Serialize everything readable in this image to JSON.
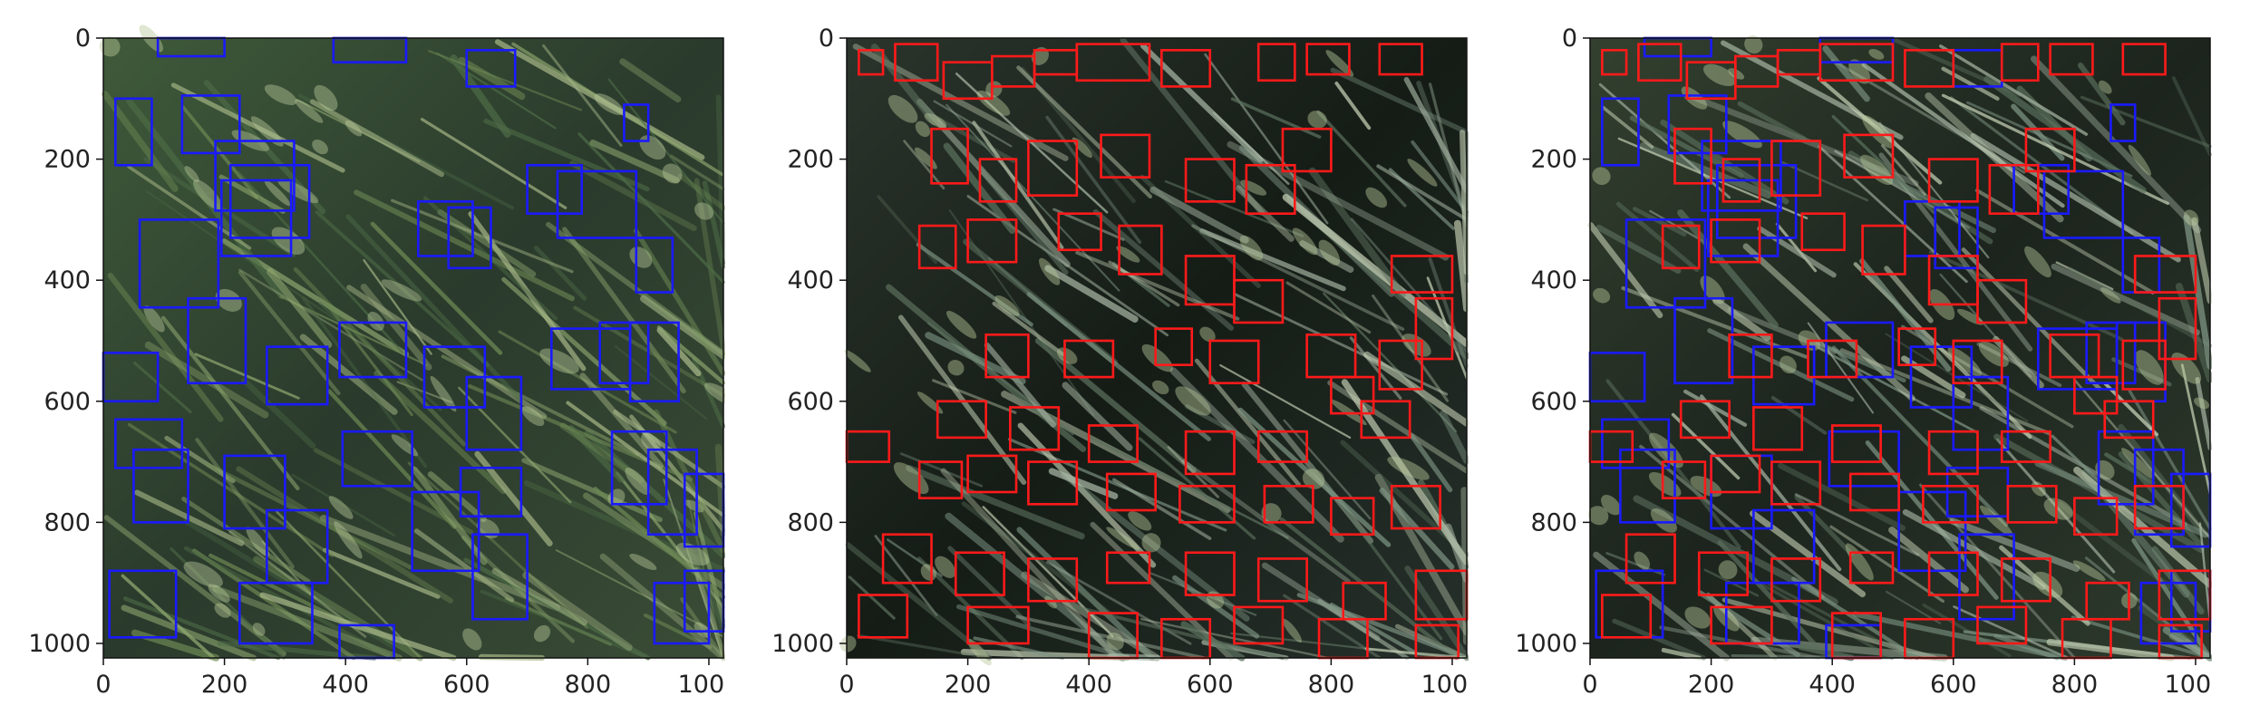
{
  "figure": {
    "panels": [
      {
        "id": "panel-1",
        "box_set": "blue"
      },
      {
        "id": "panel-2",
        "box_set": "red"
      },
      {
        "id": "panel-3",
        "box_set": "both"
      }
    ],
    "xticks": [
      "0",
      "200",
      "400",
      "600",
      "800",
      "1000"
    ],
    "yticks": [
      "0",
      "200",
      "400",
      "600",
      "800",
      "1000"
    ],
    "axis_range": [
      0,
      1024
    ],
    "colors": {
      "blue_boxes": "#1a1aff",
      "red_boxes": "#ff1a1a",
      "axis": "#111111"
    }
  },
  "boxes": {
    "blue": [
      [
        20,
        100,
        80,
        210
      ],
      [
        130,
        95,
        225,
        190
      ],
      [
        185,
        170,
        315,
        285
      ],
      [
        195,
        235,
        310,
        360
      ],
      [
        60,
        300,
        190,
        445
      ],
      [
        140,
        430,
        235,
        570
      ],
      [
        0,
        520,
        90,
        600
      ],
      [
        210,
        210,
        340,
        330
      ],
      [
        270,
        510,
        370,
        605
      ],
      [
        20,
        630,
        130,
        710
      ],
      [
        50,
        680,
        140,
        800
      ],
      [
        200,
        690,
        300,
        810
      ],
      [
        225,
        900,
        345,
        1000
      ],
      [
        10,
        880,
        120,
        990
      ],
      [
        270,
        780,
        370,
        900
      ],
      [
        390,
        470,
        500,
        560
      ],
      [
        395,
        650,
        510,
        740
      ],
      [
        390,
        970,
        480,
        1024
      ],
      [
        520,
        270,
        610,
        360
      ],
      [
        570,
        280,
        640,
        380
      ],
      [
        530,
        510,
        630,
        610
      ],
      [
        600,
        560,
        690,
        680
      ],
      [
        590,
        710,
        690,
        790
      ],
      [
        510,
        750,
        620,
        880
      ],
      [
        610,
        820,
        700,
        960
      ],
      [
        700,
        210,
        790,
        290
      ],
      [
        750,
        220,
        880,
        330
      ],
      [
        740,
        480,
        870,
        580
      ],
      [
        820,
        470,
        900,
        570
      ],
      [
        840,
        650,
        930,
        770
      ],
      [
        880,
        330,
        940,
        420
      ],
      [
        870,
        470,
        950,
        600
      ],
      [
        900,
        680,
        980,
        820
      ],
      [
        910,
        900,
        1000,
        1000
      ],
      [
        960,
        720,
        1024,
        840
      ],
      [
        960,
        880,
        1024,
        980
      ],
      [
        860,
        110,
        900,
        170
      ],
      [
        90,
        0,
        200,
        30
      ],
      [
        380,
        0,
        500,
        40
      ],
      [
        600,
        20,
        680,
        80
      ]
    ],
    "red": [
      [
        20,
        20,
        60,
        60
      ],
      [
        80,
        10,
        150,
        70
      ],
      [
        160,
        40,
        240,
        100
      ],
      [
        240,
        30,
        310,
        80
      ],
      [
        310,
        20,
        380,
        60
      ],
      [
        380,
        10,
        500,
        70
      ],
      [
        520,
        20,
        600,
        80
      ],
      [
        680,
        10,
        740,
        70
      ],
      [
        760,
        10,
        830,
        60
      ],
      [
        880,
        10,
        950,
        60
      ],
      [
        140,
        150,
        200,
        240
      ],
      [
        220,
        200,
        280,
        270
      ],
      [
        300,
        170,
        380,
        260
      ],
      [
        420,
        160,
        500,
        230
      ],
      [
        560,
        200,
        640,
        270
      ],
      [
        660,
        210,
        740,
        290
      ],
      [
        720,
        150,
        800,
        220
      ],
      [
        120,
        310,
        180,
        380
      ],
      [
        200,
        300,
        280,
        370
      ],
      [
        350,
        290,
        420,
        350
      ],
      [
        450,
        310,
        520,
        390
      ],
      [
        560,
        360,
        640,
        440
      ],
      [
        640,
        400,
        720,
        470
      ],
      [
        900,
        360,
        1000,
        420
      ],
      [
        230,
        490,
        300,
        560
      ],
      [
        360,
        500,
        440,
        560
      ],
      [
        510,
        480,
        570,
        540
      ],
      [
        600,
        500,
        680,
        570
      ],
      [
        760,
        490,
        840,
        560
      ],
      [
        880,
        500,
        950,
        580
      ],
      [
        940,
        430,
        1000,
        530
      ],
      [
        150,
        600,
        230,
        660
      ],
      [
        270,
        610,
        350,
        680
      ],
      [
        400,
        640,
        480,
        700
      ],
      [
        560,
        650,
        640,
        720
      ],
      [
        680,
        650,
        760,
        700
      ],
      [
        800,
        560,
        870,
        620
      ],
      [
        850,
        600,
        930,
        660
      ],
      [
        0,
        650,
        70,
        700
      ],
      [
        120,
        700,
        190,
        760
      ],
      [
        200,
        690,
        280,
        750
      ],
      [
        300,
        700,
        380,
        770
      ],
      [
        430,
        720,
        510,
        780
      ],
      [
        550,
        740,
        640,
        800
      ],
      [
        690,
        740,
        770,
        800
      ],
      [
        800,
        760,
        870,
        820
      ],
      [
        900,
        740,
        980,
        810
      ],
      [
        60,
        820,
        140,
        900
      ],
      [
        180,
        850,
        260,
        920
      ],
      [
        300,
        860,
        380,
        930
      ],
      [
        430,
        850,
        500,
        900
      ],
      [
        560,
        850,
        640,
        920
      ],
      [
        680,
        860,
        760,
        930
      ],
      [
        820,
        900,
        890,
        960
      ],
      [
        940,
        880,
        1024,
        960
      ],
      [
        20,
        920,
        100,
        990
      ],
      [
        200,
        940,
        300,
        1000
      ],
      [
        400,
        950,
        480,
        1024
      ],
      [
        520,
        960,
        600,
        1024
      ],
      [
        640,
        940,
        720,
        1000
      ],
      [
        780,
        960,
        860,
        1024
      ],
      [
        940,
        970,
        1010,
        1024
      ]
    ]
  }
}
